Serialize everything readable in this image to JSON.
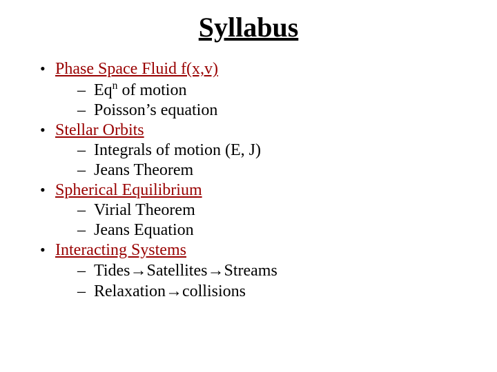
{
  "slide": {
    "title": "Syllabus",
    "background_color": "#ffffff",
    "title_color": "#000000",
    "section_color": "#990000",
    "body_color": "#000000",
    "title_fontsize": 40,
    "body_fontsize": 24,
    "sections": [
      {
        "label": "Phase Space Fluid f(x,v)",
        "items": [
          {
            "text_html": "Eq<span class='sup'>n</span> of motion"
          },
          {
            "text_html": "Poisson’s equation"
          }
        ]
      },
      {
        "label": " Stellar Orbits",
        "items": [
          {
            "text_html": "Integrals of motion (E, J)"
          },
          {
            "text_html": "Jeans Theorem"
          }
        ]
      },
      {
        "label": "Spherical Equilibrium",
        "items": [
          {
            "text_html": "Virial Theorem"
          },
          {
            "text_html": "Jeans Equation"
          }
        ]
      },
      {
        "label": "Interacting Systems",
        "items": [
          {
            "text_html": "Tides<span class='arrow'>→</span>Satellites<span class='arrow'>→</span>Streams"
          },
          {
            "text_html": "Relaxation<span class='arrow'>→</span>collisions"
          }
        ]
      }
    ]
  }
}
